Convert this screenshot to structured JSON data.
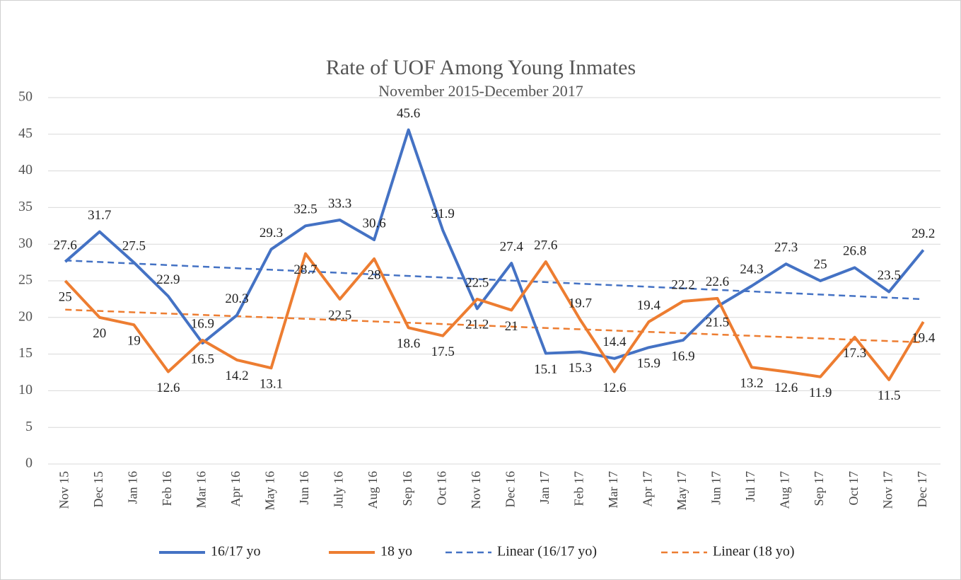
{
  "chart_data": {
    "type": "line",
    "title": "Rate of UOF Among Young Inmates",
    "subtitle": "November 2015-December 2017",
    "categories": [
      "Nov 15",
      "Dec 15",
      "Jan 16",
      "Feb 16",
      "Mar 16",
      "Apr 16",
      "May 16",
      "Jun 16",
      "July 16",
      "Aug 16",
      "Sep 16",
      "Oct 16",
      "Nov 16",
      "Dec 16",
      "Jan 17",
      "Feb 17",
      "Mar 17",
      "Apr 17",
      "May 17",
      "Jun 17",
      "Jul 17",
      "Aug 17",
      "Sep 17",
      "Oct 17",
      "Nov 17",
      "Dec 17"
    ],
    "series": [
      {
        "name": "16/17 yo",
        "color": "#4472c4",
        "values": [
          27.6,
          31.7,
          27.5,
          22.9,
          16.5,
          20.3,
          29.3,
          32.5,
          33.3,
          30.6,
          45.6,
          31.9,
          21.2,
          27.4,
          15.1,
          15.3,
          14.4,
          15.9,
          16.9,
          21.5,
          24.3,
          27.3,
          25,
          26.8,
          23.5,
          29.2
        ]
      },
      {
        "name": "18 yo",
        "color": "#ed7d31",
        "values": [
          25,
          20,
          19,
          12.6,
          16.9,
          14.2,
          13.1,
          28.7,
          22.5,
          28,
          18.6,
          17.5,
          22.5,
          21,
          27.6,
          19.7,
          12.6,
          19.4,
          22.2,
          22.6,
          13.2,
          12.6,
          11.9,
          17.3,
          11.5,
          19.4
        ]
      }
    ],
    "trendlines": [
      {
        "name": "Linear (16/17 yo)",
        "color": "#4472c4",
        "of": "16/17 yo"
      },
      {
        "name": "Linear (18 yo)",
        "color": "#ed7d31",
        "of": "18 yo"
      }
    ],
    "ylim": [
      0,
      50
    ],
    "yticks": [
      0,
      5,
      10,
      15,
      20,
      25,
      30,
      35,
      40,
      45,
      50
    ],
    "grid": true
  }
}
